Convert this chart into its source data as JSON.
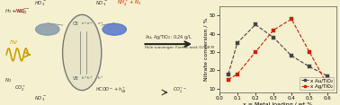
{
  "background_color": "#f5f0d0",
  "plot_bg_color": "#f5f0d0",
  "au_x": [
    0.05,
    0.1,
    0.2,
    0.3,
    0.4,
    0.5,
    0.6
  ],
  "au_y": [
    18,
    35,
    45,
    38,
    28,
    22,
    17
  ],
  "ag_x": [
    0.05,
    0.1,
    0.2,
    0.3,
    0.4,
    0.5,
    0.6
  ],
  "ag_y": [
    15,
    18,
    30,
    42,
    48,
    30,
    12
  ],
  "au_color": "#444444",
  "ag_color": "#cc2200",
  "xlabel": "x = Metal loading / wt %",
  "ylabel": "Nitrate conversion / %",
  "xlim": [
    0.0,
    0.65
  ],
  "ylim": [
    8,
    55
  ],
  "xticks": [
    0.0,
    0.1,
    0.2,
    0.3,
    0.4,
    0.5,
    0.6
  ],
  "yticks": [
    10,
    20,
    30,
    40,
    50
  ],
  "legend_au": "x Au/TiO₂",
  "legend_ag": "x Ag/TiO₂",
  "label_fontsize": 4.5,
  "tick_fontsize": 4.0,
  "legend_fontsize": 4.0,
  "fig_width": 3.78,
  "fig_height": 1.17,
  "dpi": 100
}
